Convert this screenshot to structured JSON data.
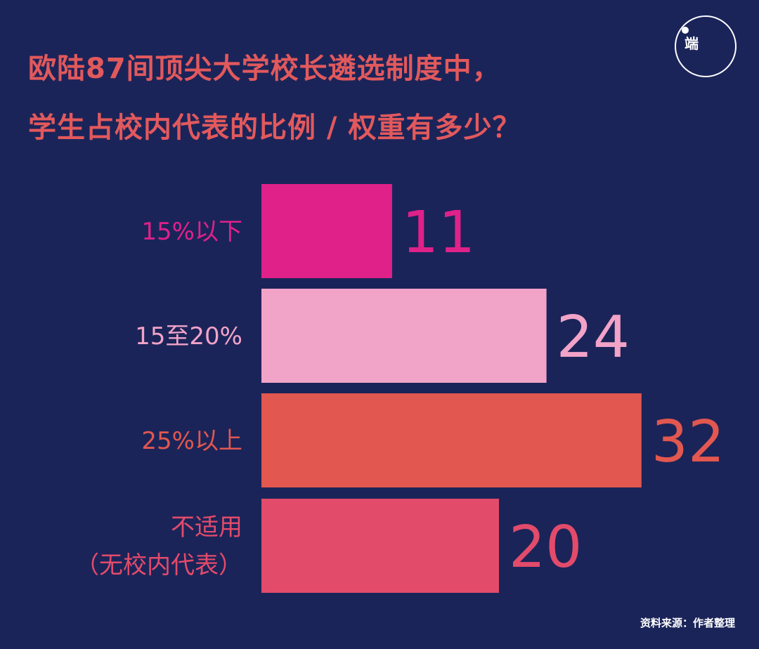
{
  "title_line1": "欧陆87间顶尖大学校长遴选制度中，",
  "title_line2": "学生占校内代表的比例 / 权重有多少？",
  "logo_text": "端",
  "source": "资料来源：作者整理",
  "colors": {
    "background": "#1b2459",
    "title": "#e2595c"
  },
  "chart_data": {
    "type": "bar",
    "orientation": "horizontal",
    "categories": [
      [
        "15%以下"
      ],
      [
        "15至20%"
      ],
      [
        "25%以上"
      ],
      [
        "不适用",
        "（无校内代表）"
      ]
    ],
    "values": [
      11,
      24,
      32,
      20
    ],
    "bar_colors": [
      "#e0218a",
      "#f2a3c8",
      "#e2574f",
      "#e34b6b"
    ],
    "label_colors": [
      "#e0218a",
      "#f2a3c8",
      "#e2574f",
      "#e34b6b"
    ],
    "value_colors": [
      "#e0218a",
      "#f2a3c8",
      "#e2574f",
      "#e34b6b"
    ],
    "title": "",
    "xlabel": "",
    "ylabel": "",
    "grid": false,
    "legend": "none"
  }
}
